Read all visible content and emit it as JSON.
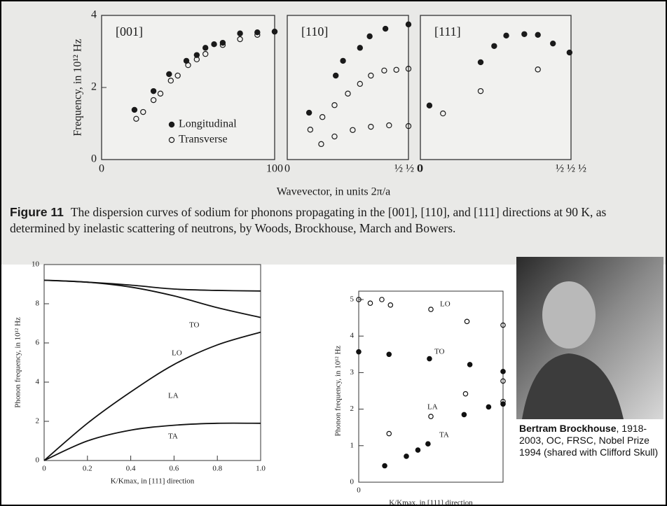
{
  "chart_data": [
    {
      "type": "scatter",
      "title": "[001]",
      "ylabel": "Frequency, in 10¹² Hz",
      "xlim": [
        0,
        1
      ],
      "xticks": [
        0,
        {
          "value": 1,
          "label": "100"
        }
      ],
      "ylim": [
        0,
        4
      ],
      "yticks": [
        0,
        2,
        4
      ],
      "legend": "lower right",
      "series": [
        {
          "name": "Longitudinal",
          "marker": "filled",
          "color": "#1a1a1a",
          "x": [
            0.19,
            0.3,
            0.39,
            0.49,
            0.55,
            0.6,
            0.65,
            0.7,
            0.8,
            0.9,
            1.0
          ],
          "values": [
            1.38,
            1.9,
            2.37,
            2.74,
            2.9,
            3.1,
            3.2,
            3.24,
            3.5,
            3.53,
            3.55
          ]
        },
        {
          "name": "Transverse",
          "marker": "open",
          "color": "#1a1a1a",
          "x": [
            0.2,
            0.24,
            0.3,
            0.34,
            0.4,
            0.44,
            0.5,
            0.55,
            0.6,
            0.7,
            0.8,
            0.9,
            1.0
          ],
          "values": [
            1.13,
            1.32,
            1.65,
            1.83,
            2.19,
            2.33,
            2.62,
            2.78,
            2.93,
            3.18,
            3.34,
            3.46,
            3.55
          ]
        }
      ]
    },
    {
      "type": "scatter",
      "title": "[110]",
      "xlim": [
        0,
        1
      ],
      "xticks": [
        0,
        {
          "value": 1,
          "label": "½ ½ 0"
        }
      ],
      "ylim": [
        0,
        4
      ],
      "series": [
        {
          "marker": "filled",
          "color": "#1a1a1a",
          "x": [
            0.18,
            0.4,
            0.46,
            0.6,
            0.68,
            0.81,
            1.0
          ],
          "values": [
            1.3,
            2.33,
            2.74,
            3.1,
            3.42,
            3.63,
            3.75
          ]
        },
        {
          "marker": "open",
          "color": "#1a1a1a",
          "x": [
            0.19,
            0.29,
            0.39,
            0.5,
            0.6,
            0.69,
            0.8,
            0.9,
            1.0
          ],
          "values": [
            0.83,
            1.18,
            1.51,
            1.83,
            2.1,
            2.33,
            2.47,
            2.49,
            2.52
          ]
        },
        {
          "marker": "open",
          "color": "#1a1a1a",
          "x": [
            0.28,
            0.39,
            0.54,
            0.69,
            0.84,
            1.0
          ],
          "values": [
            0.43,
            0.64,
            0.82,
            0.91,
            0.95,
            0.93
          ]
        }
      ]
    },
    {
      "type": "scatter",
      "title": "[111]",
      "xlim": [
        0,
        1
      ],
      "xticks": [
        0,
        {
          "value": 1,
          "label": "½ ½ ½"
        }
      ],
      "ylim": [
        0,
        4
      ],
      "series": [
        {
          "marker": "filled",
          "color": "#1a1a1a",
          "x": [
            0.06,
            0.4,
            0.49,
            0.57,
            0.69,
            0.78,
            0.88,
            0.99
          ],
          "values": [
            1.5,
            2.7,
            3.15,
            3.44,
            3.48,
            3.46,
            3.22,
            2.97
          ]
        },
        {
          "marker": "open",
          "color": "#1a1a1a",
          "x": [
            0.15,
            0.4,
            0.78
          ],
          "values": [
            1.28,
            1.9,
            2.5
          ]
        }
      ]
    },
    {
      "type": "line",
      "ylabel": "Phonon frequency, in 10¹² Hz",
      "xlabel": "K/Kmax, in [111] direction",
      "x": [
        0,
        0.2,
        0.4,
        0.6,
        0.8,
        1.0
      ],
      "xlim": [
        0,
        1
      ],
      "xticks": [
        0,
        0.2,
        0.4,
        0.6,
        0.8,
        {
          "value": 1,
          "label": "1.0"
        }
      ],
      "ylim": [
        0,
        10
      ],
      "yticks": [
        0,
        2,
        4,
        6,
        8,
        10
      ],
      "series": [
        {
          "name": "TO",
          "color": "#111111",
          "values": [
            9.2,
            9.1,
            8.95,
            8.75,
            8.68,
            8.65
          ]
        },
        {
          "name": "LO",
          "color": "#111111",
          "values": [
            9.2,
            9.1,
            8.85,
            8.4,
            7.8,
            7.3
          ]
        },
        {
          "name": "LA",
          "color": "#111111",
          "values": [
            0,
            1.9,
            3.5,
            4.9,
            5.9,
            6.55
          ]
        },
        {
          "name": "TA",
          "color": "#111111",
          "values": [
            0,
            1.0,
            1.55,
            1.8,
            1.9,
            1.9
          ]
        }
      ]
    },
    {
      "type": "scatter",
      "ylabel": "Phonon frequency, in 10¹² Hz",
      "xlabel": "K/Kmax, in [111] direction",
      "xlim": [
        0,
        1
      ],
      "xticks": [
        0
      ],
      "ylim": [
        0,
        5
      ],
      "yticks": [
        0,
        1,
        2,
        3,
        4,
        5
      ],
      "series": [
        {
          "name": "LO",
          "marker": "open",
          "color": "#111111",
          "x": [
            0,
            0.08,
            0.16,
            0.22,
            0.5,
            0.75,
            1.0
          ],
          "values": [
            5.0,
            4.9,
            5.0,
            4.85,
            4.73,
            4.4,
            4.3
          ]
        },
        {
          "name": "TO",
          "marker": "filled",
          "color": "#111111",
          "x": [
            0,
            0.21,
            0.49,
            0.77,
            1.0
          ],
          "values": [
            3.57,
            3.5,
            3.38,
            3.22,
            3.03
          ]
        },
        {
          "name": "LA",
          "marker": "open",
          "color": "#111111",
          "x": [
            0.21,
            0.5,
            0.74,
            1.0,
            1.0
          ],
          "values": [
            1.33,
            1.8,
            2.42,
            2.21,
            2.77
          ]
        },
        {
          "name": "TA",
          "marker": "filled",
          "color": "#111111",
          "x": [
            0.18,
            0.33,
            0.41,
            0.48,
            0.73,
            0.9,
            1.0
          ],
          "values": [
            0.45,
            0.71,
            0.88,
            1.05,
            1.85,
            2.06,
            2.14
          ]
        }
      ]
    }
  ],
  "figure": {
    "xlabel": "Wavevector, in units 2π/a",
    "label": "Figure 11",
    "caption": "The dispersion curves of sodium for phonons propagating in the [001], [110], and [111] directions at 90 K, as determined by inelastic scattering of neutrons, by Woods, Brockhouse, March and Bowers."
  },
  "photo_caption": {
    "name": "Bertram Brockhouse",
    "details": ", 1918-2003, OC, FRSC, Nobel Prize 1994 (shared with Clifford Skull)"
  }
}
